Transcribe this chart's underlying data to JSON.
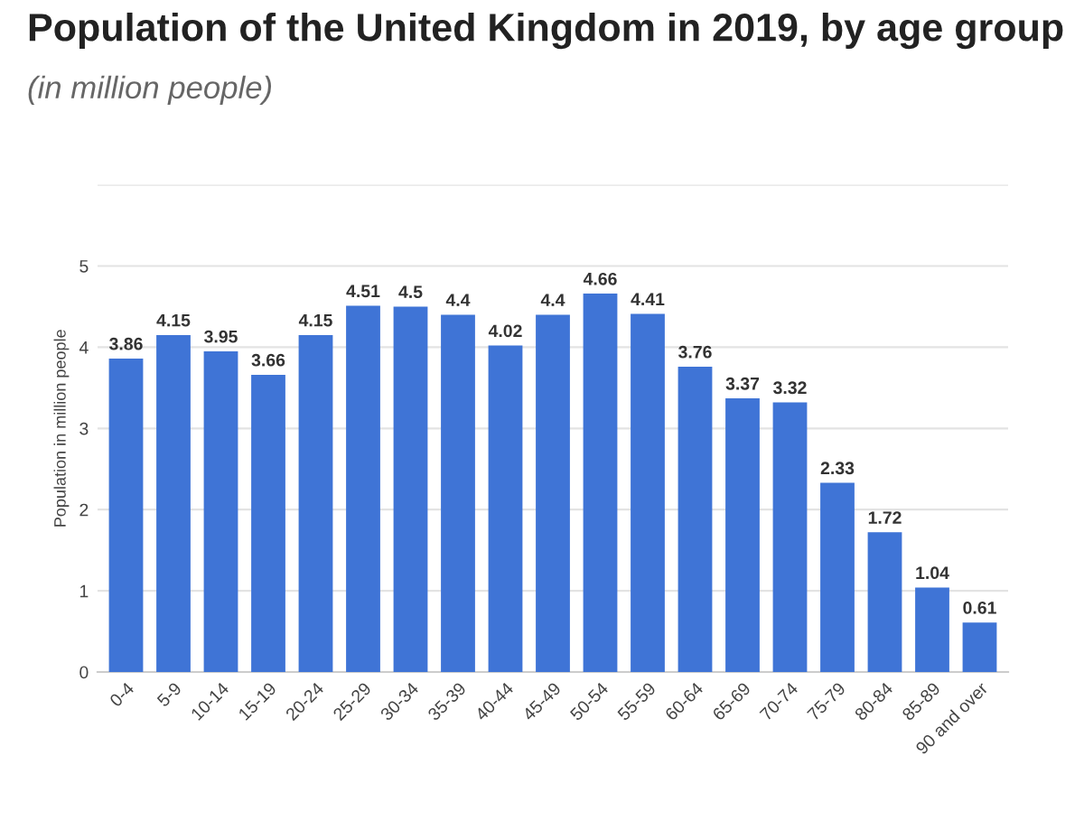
{
  "chart_data": {
    "type": "bar",
    "title": "Population of the United Kingdom in 2019, by age group",
    "subtitle": "(in million people)",
    "ylabel": "Population in million people",
    "categories": [
      "0-4",
      "5-9",
      "10-14",
      "15-19",
      "20-24",
      "25-29",
      "30-34",
      "35-39",
      "40-44",
      "45-49",
      "50-54",
      "55-59",
      "60-64",
      "65-69",
      "70-74",
      "75-79",
      "80-84",
      "85-89",
      "90 and over"
    ],
    "values": [
      3.86,
      4.15,
      3.95,
      3.66,
      4.15,
      4.51,
      4.5,
      4.4,
      4.02,
      4.4,
      4.66,
      4.41,
      3.76,
      3.37,
      3.32,
      2.33,
      1.72,
      1.04,
      0.61
    ],
    "color": "#3f74d6",
    "data_labels": true,
    "ylim": [
      0,
      6
    ],
    "yticks": [
      0,
      1,
      2,
      3,
      4,
      5,
      {
        "value": 6,
        "label": null
      }
    ],
    "grid": "y"
  }
}
